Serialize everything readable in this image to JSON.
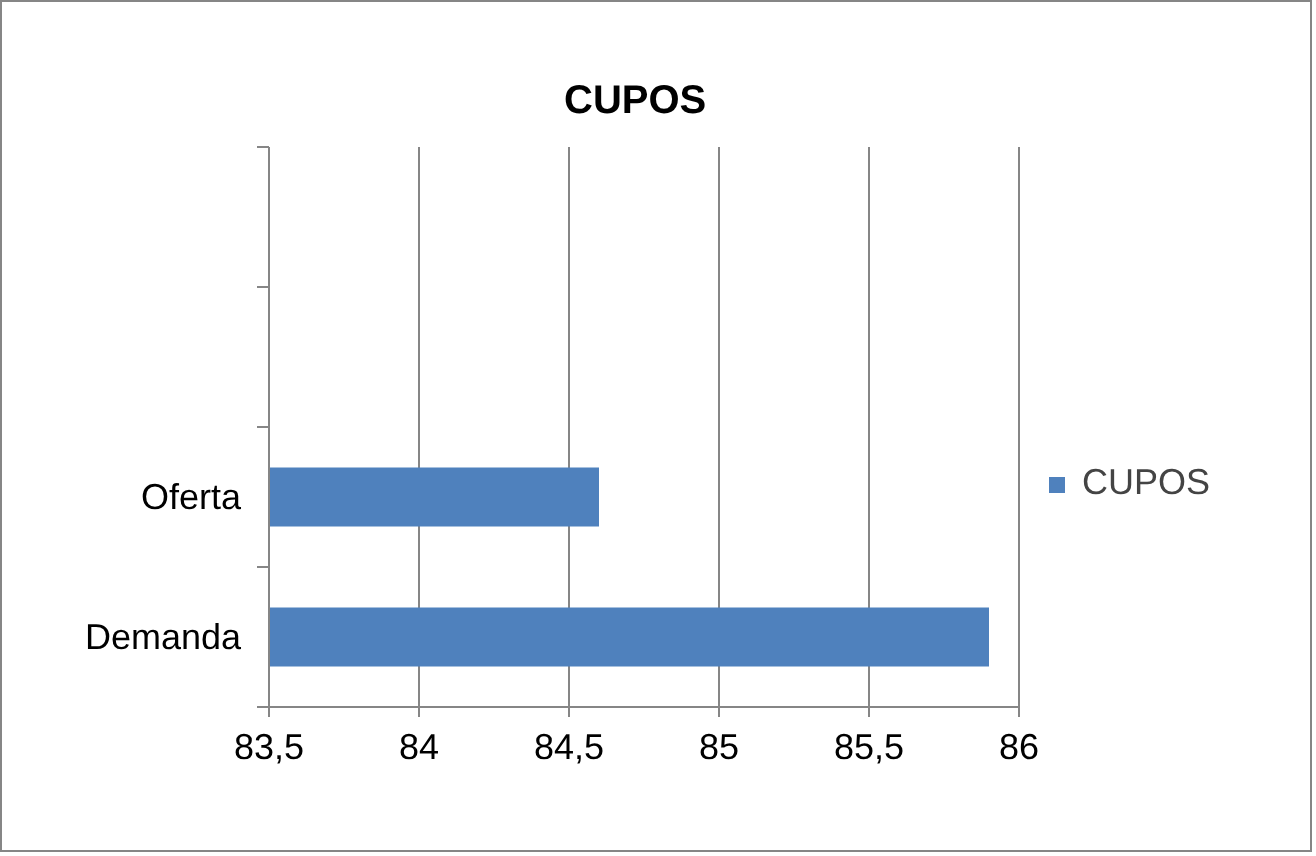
{
  "chart_data": {
    "type": "bar",
    "orientation": "horizontal",
    "title": "CUPOS",
    "categories": [
      null,
      null,
      "Oferta",
      "Demanda"
    ],
    "series": [
      {
        "name": "CUPOS",
        "color": "#4f81bd",
        "values": [
          null,
          null,
          84.6,
          85.9
        ]
      }
    ],
    "xlim": [
      83.5,
      86
    ],
    "xticks": [
      {
        "value": 83.5,
        "label": "83,5"
      },
      84,
      {
        "value": 84.5,
        "label": "84,5"
      },
      85,
      {
        "value": 85.5,
        "label": "85,5"
      },
      86
    ],
    "grid": "x",
    "legend": "right"
  }
}
